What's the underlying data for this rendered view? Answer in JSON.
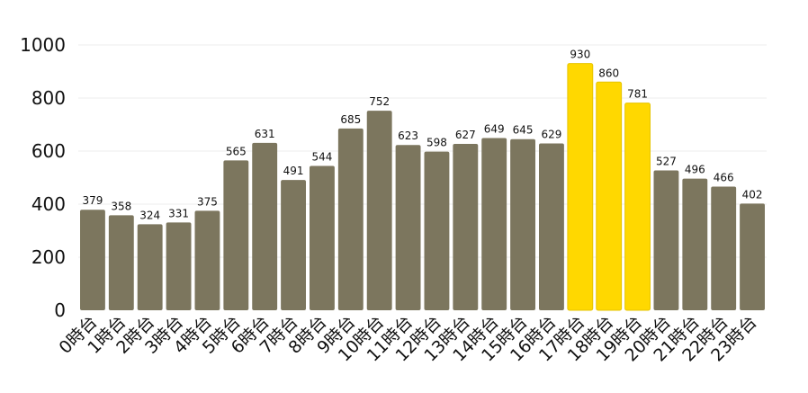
{
  "chart_data": {
    "type": "bar",
    "categories": [
      "0時台",
      "1時台",
      "2時台",
      "3時台",
      "4時台",
      "5時台",
      "6時台",
      "7時台",
      "8時台",
      "9時台",
      "10時台",
      "11時台",
      "12時台",
      "13時台",
      "14時台",
      "15時台",
      "16時台",
      "17時台",
      "18時台",
      "19時台",
      "20時台",
      "21時台",
      "22時台",
      "23時台"
    ],
    "values": [
      379,
      358,
      324,
      331,
      375,
      565,
      631,
      491,
      544,
      685,
      752,
      623,
      598,
      627,
      649,
      645,
      629,
      930,
      860,
      781,
      527,
      496,
      466,
      402
    ],
    "highlighted": [
      "17時台",
      "18時台",
      "19時台"
    ],
    "yticks": [
      0,
      200,
      400,
      600,
      800,
      1000
    ],
    "ylim": [
      0,
      1000
    ],
    "grid": true,
    "data_labels": true,
    "colors": {
      "bar": "#7c765e",
      "highlight": "#ffd800",
      "highlight_border": "#e6c400",
      "grid": "#ececec"
    }
  }
}
